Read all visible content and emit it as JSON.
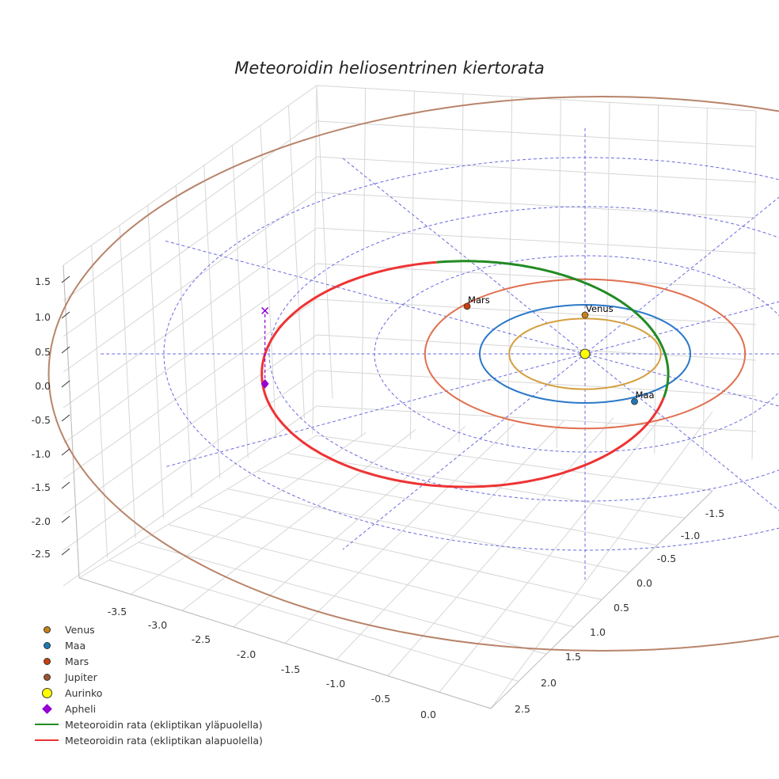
{
  "chart_data": {
    "type": "line",
    "projection": "3d",
    "title": "Meteoroidin heliosentrinen kiertorata",
    "x_ticks": [
      "-1.5",
      "-1.0",
      "-0.5",
      "0.0",
      "0.5",
      "1.0",
      "1.5",
      "2.0",
      "2.5"
    ],
    "y_ticks": [
      "-3.5",
      "-3.0",
      "-2.5",
      "-2.0",
      "-1.5",
      "-1.0",
      "-0.5",
      "0.0"
    ],
    "z_ticks": [
      "1.5",
      "1.0",
      "0.5",
      "0.0",
      "-0.5",
      "-1.0",
      "-1.5",
      "-2.0",
      "-2.5"
    ],
    "reference_rings_au": [
      1,
      2,
      3,
      4
    ],
    "radial_lines_deg": [
      0,
      30,
      60,
      90,
      120,
      150
    ],
    "planet_orbits": [
      {
        "name": "Venus",
        "radius_au": 0.72,
        "color": "#d4a040"
      },
      {
        "name": "Maa",
        "radius_au": 1.0,
        "color": "#2a78c8"
      },
      {
        "name": "Mars",
        "radius_au": 1.52,
        "color": "#e07050"
      },
      {
        "name": "Jupiter",
        "radius_au": 5.2,
        "color": "#b8846a"
      }
    ],
    "planets": [
      {
        "name": "Venus",
        "label": "Venus",
        "x": 0.0,
        "y": -0.79,
        "z": 0,
        "color": "#c8801a"
      },
      {
        "name": "Maa",
        "label": "Maa",
        "x": 0.47,
        "y": 0.97,
        "z": 0,
        "color": "#1f77b4"
      },
      {
        "name": "Mars",
        "label": "Mars",
        "x": -1.12,
        "y": -0.97,
        "z": 0,
        "color": "#c84010"
      }
    ],
    "sun": {
      "x": 0,
      "y": 0,
      "z": 0,
      "color": "#ffff00"
    },
    "aphelion": {
      "x": -3.04,
      "y": 0.61,
      "z": 0.0,
      "z_marker": 1.05,
      "color": "#9400d3"
    },
    "meteoroid_orbit": {
      "center_x": -1.14,
      "center_y": 0.41,
      "semi_x": 1.93,
      "semi_y": 2.3,
      "above_color": "#228b22",
      "below_color": "#ee3333"
    },
    "legend": [
      {
        "label": "Venus",
        "kind": "dot",
        "color": "#c8801a"
      },
      {
        "label": "Maa",
        "kind": "dot",
        "color": "#1f77b4"
      },
      {
        "label": "Mars",
        "kind": "dot",
        "color": "#c84010"
      },
      {
        "label": "Jupiter",
        "kind": "dot",
        "color": "#a0522d"
      },
      {
        "label": "Aurinko",
        "kind": "bigdot",
        "color": "#ffff00"
      },
      {
        "label": "Apheli",
        "kind": "diamond",
        "color": "#9400d3"
      },
      {
        "label": "Meteoroidin rata (ekliptikan yläpuolella)",
        "kind": "line",
        "color": "#228b22"
      },
      {
        "label": "Meteoroidin rata (ekliptikan alapuolella)",
        "kind": "line",
        "color": "#ee3333"
      }
    ]
  }
}
